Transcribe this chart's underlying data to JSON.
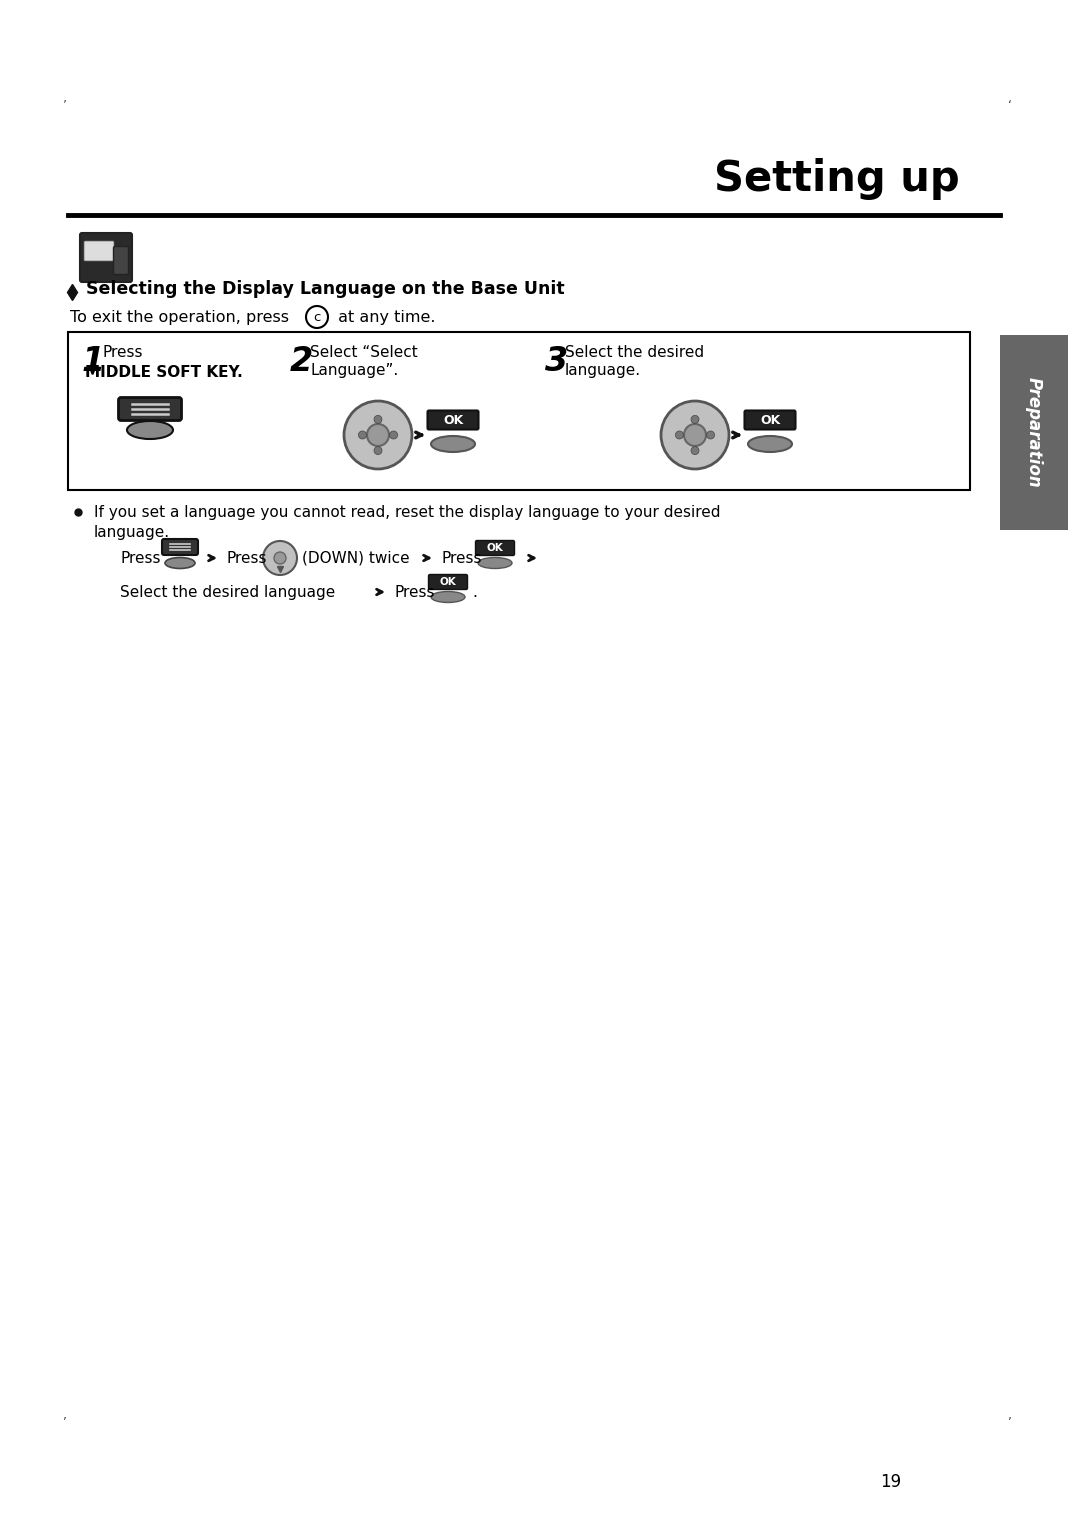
{
  "title": "Setting up",
  "section_title": "Selecting the Display Language on the Base Unit",
  "exit_text": "To exit the operation, press",
  "exit_text2": " at any time.",
  "step1_num": "1",
  "step1_text1": "Press",
  "step1_text2": "MIDDLE SOFT KEY.",
  "step2_num": "2",
  "step2_text1": "Select “Select",
  "step2_text2": "Language”.",
  "step3_num": "3",
  "step3_text1": "Select the desired",
  "step3_text2": "language.",
  "bullet_text1": "If you set a language you cannot read, reset the display language to your desired",
  "bullet_text2": "language.",
  "press_label": "Press",
  "press_label2": "Press",
  "down_text": "(DOWN) twice",
  "press_label3": "Press",
  "select_lang_line": "Select the desired language",
  "arrow_char": "▶",
  "press_label4": "Press",
  "page_num": "19",
  "tab_text": "Preparation",
  "bg_color": "#ffffff",
  "tab_color": "#666666",
  "box_border_color": "#000000",
  "ok_bg_color": "#222222",
  "ok_text_color": "#ffffff",
  "gray_btn_color": "#888888",
  "dark_key_color": "#333333",
  "nav_outer_color": "#aaaaaa",
  "nav_inner_color": "#999999"
}
